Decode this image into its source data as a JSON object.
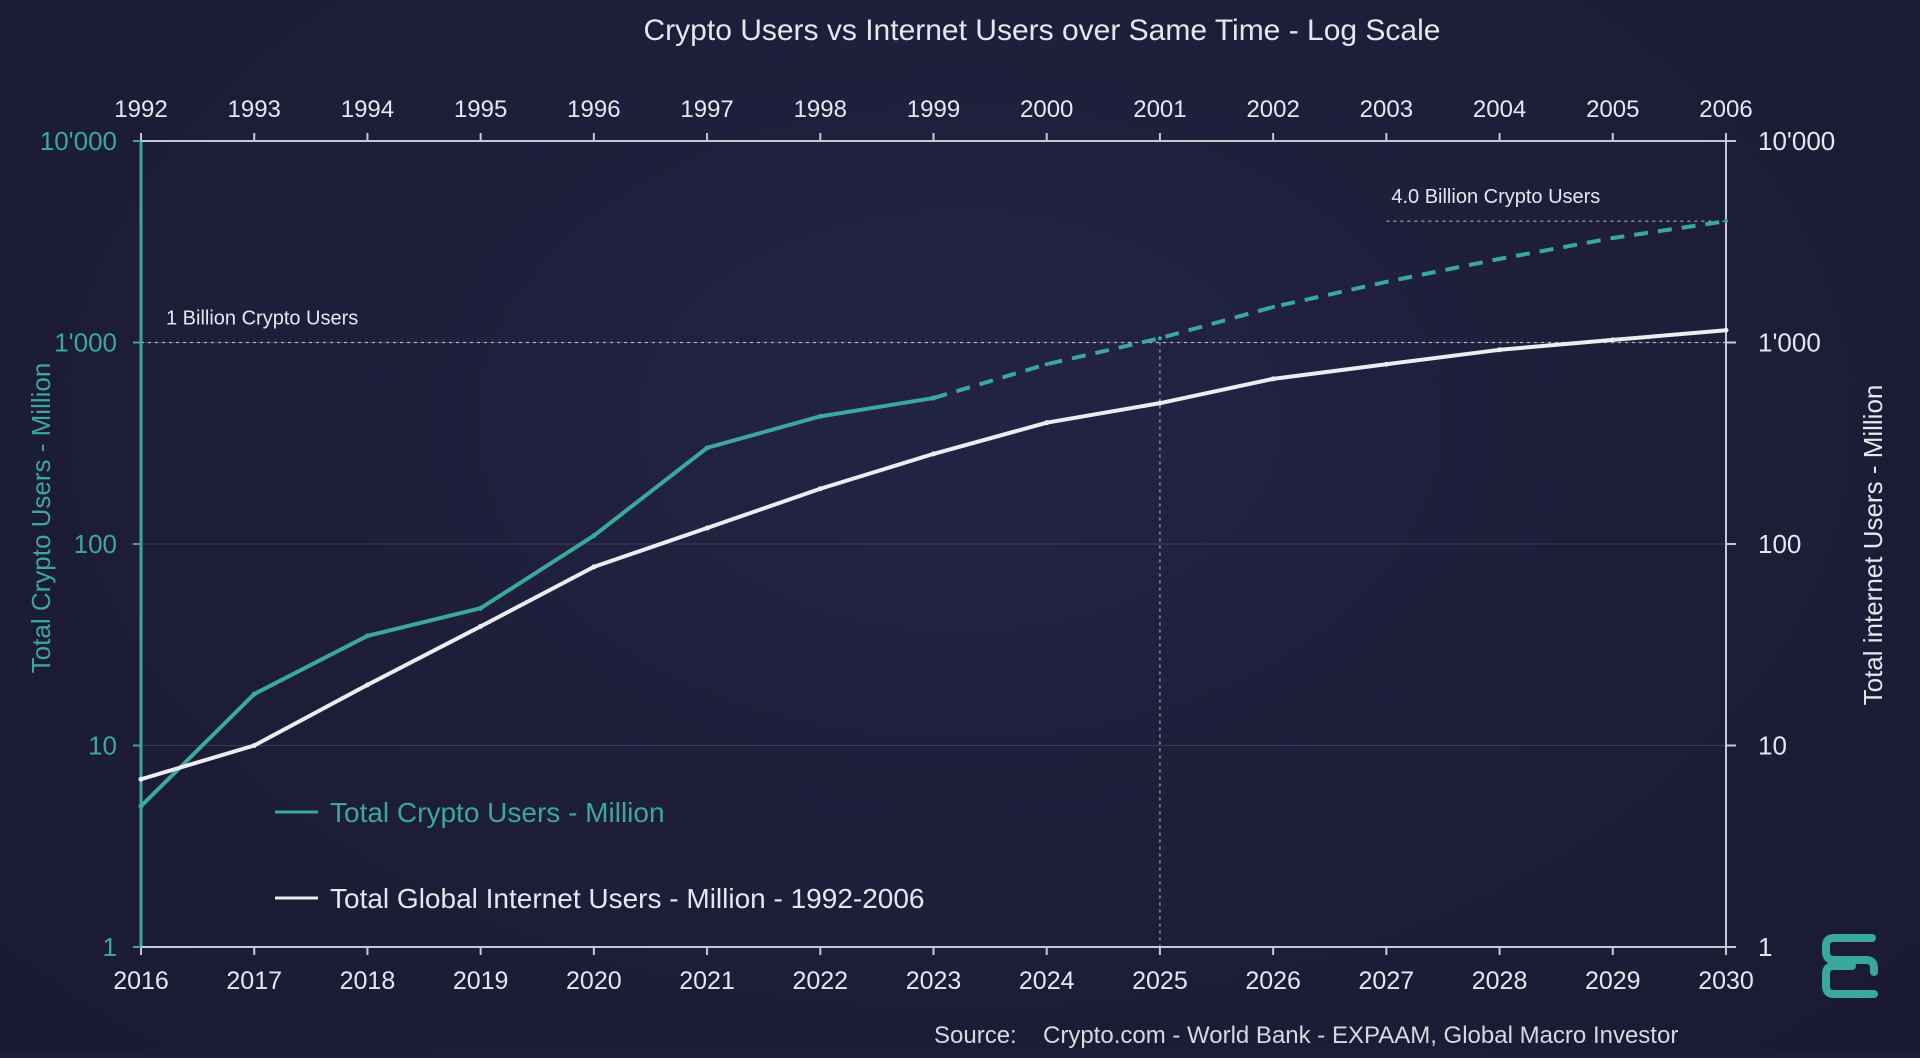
{
  "colors": {
    "background": "#1d1d37",
    "crypto": "#3aa89c",
    "internet": "#ececf2",
    "text": "#e6e6ee",
    "grid": "#3a3a5a",
    "axis": "#c8c8d4",
    "logo": "#3aa89c"
  },
  "logo": {
    "icon": "stacked-e-logo-icon"
  },
  "chart_data": {
    "type": "line",
    "title": "Crypto Users vs Internet Users over Same Time - Log Scale",
    "source_label": "Source:",
    "source_text": "Crypto.com - World Bank - EXPAAM, Global Macro Investor",
    "y_scale": "log",
    "grid": true,
    "x_bottom": {
      "range": [
        2016,
        2030
      ],
      "ticks": [
        "2016",
        "2017",
        "2018",
        "2019",
        "2020",
        "2021",
        "2022",
        "2023",
        "2024",
        "2025",
        "2026",
        "2027",
        "2028",
        "2029",
        "2030"
      ]
    },
    "x_top": {
      "range": [
        1992,
        2006
      ],
      "ticks": [
        "1992",
        "1993",
        "1994",
        "1995",
        "1996",
        "1997",
        "1998",
        "1999",
        "2000",
        "2001",
        "2002",
        "2003",
        "2004",
        "2005",
        "2006"
      ]
    },
    "y_left": {
      "label": "Total Crypto Users - Million",
      "range": [
        1,
        10000
      ],
      "ticks": [
        {
          "value": 1,
          "label": "1"
        },
        {
          "value": 10,
          "label": "10"
        },
        {
          "value": 100,
          "label": "100"
        },
        {
          "value": 1000,
          "label": "1'000"
        },
        {
          "value": 10000,
          "label": "10'000"
        }
      ]
    },
    "y_right": {
      "label": "Total internet Users - Million",
      "range": [
        1,
        10000
      ],
      "ticks": [
        {
          "value": 1,
          "label": "1"
        },
        {
          "value": 10,
          "label": "10"
        },
        {
          "value": 100,
          "label": "100"
        },
        {
          "value": 1000,
          "label": "1'000"
        },
        {
          "value": 10000,
          "label": "10'000"
        }
      ]
    },
    "series": [
      {
        "name": "Total Crypto Users - Million",
        "axis": "bottom-left",
        "actual": {
          "x": [
            2016,
            2017,
            2018,
            2019,
            2020,
            2021,
            2022,
            2023
          ],
          "y": [
            5,
            18,
            35,
            48,
            110,
            300,
            430,
            530
          ]
        },
        "projected": {
          "x": [
            2023,
            2024,
            2025,
            2026,
            2027,
            2028,
            2029,
            2030
          ],
          "y": [
            530,
            780,
            1050,
            1500,
            2000,
            2600,
            3300,
            4000
          ]
        }
      },
      {
        "name": "Total Global Internet Users - Million - 1992-2006",
        "axis": "top-right",
        "x": [
          1992,
          1993,
          1994,
          1995,
          1996,
          1997,
          1998,
          1999,
          2000,
          2001,
          2002,
          2003,
          2004,
          2005,
          2006
        ],
        "y": [
          6.8,
          10,
          20,
          39,
          77,
          120,
          188,
          280,
          400,
          500,
          660,
          780,
          920,
          1030,
          1150
        ]
      }
    ],
    "annotations": [
      {
        "text": "1 Billion Crypto Users",
        "value": 1000,
        "x_from": 2016,
        "x_to": 2030
      },
      {
        "text": "4.0 Billion Crypto Users",
        "value": 4000,
        "x_from": 2027,
        "x_to": 2030
      }
    ],
    "vline": {
      "x": 2025
    },
    "legend": {
      "position": "bottom-left"
    }
  }
}
